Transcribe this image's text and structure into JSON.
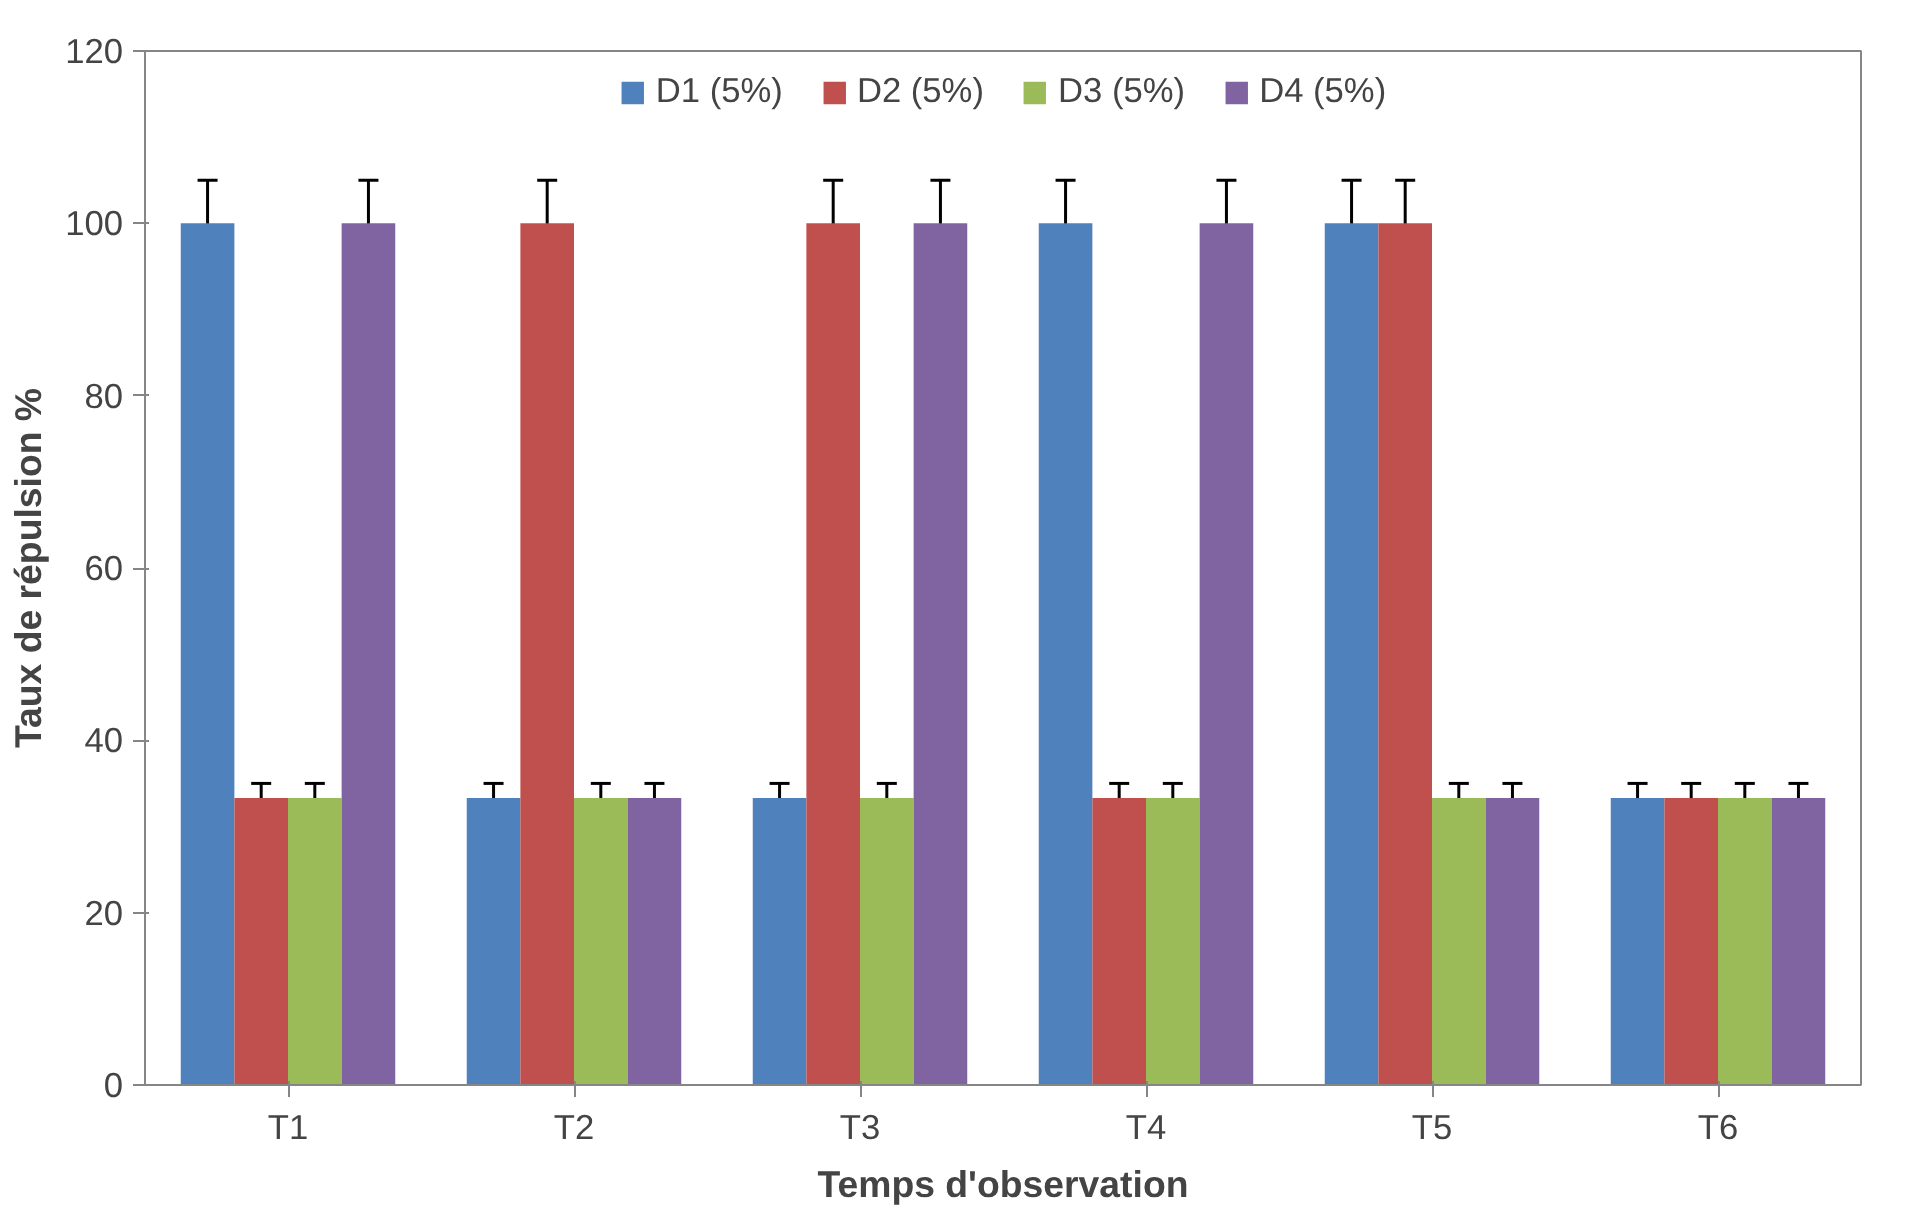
{
  "chart_data": {
    "type": "bar",
    "xlabel": "Temps d'observation",
    "ylabel": "Taux de répulsion %",
    "categories": [
      "T1",
      "T2",
      "T3",
      "T4",
      "T5",
      "T6"
    ],
    "series": [
      {
        "name": "D1 (5%)",
        "color": "#4f81bd",
        "values": [
          100,
          33.3,
          33.3,
          100,
          100,
          33.3
        ],
        "errors": [
          5,
          1.7,
          1.7,
          5,
          5,
          1.7
        ]
      },
      {
        "name": "D2 (5%)",
        "color": "#c0504d",
        "values": [
          33.3,
          100,
          100,
          33.3,
          100,
          33.3
        ],
        "errors": [
          1.7,
          5,
          5,
          1.7,
          5,
          1.7
        ]
      },
      {
        "name": "D3 (5%)",
        "color": "#9bbb59",
        "values": [
          33.3,
          33.3,
          33.3,
          33.3,
          33.3,
          33.3
        ],
        "errors": [
          1.7,
          1.7,
          1.7,
          1.7,
          1.7,
          1.7
        ]
      },
      {
        "name": "D4 (5%)",
        "color": "#8064a2",
        "values": [
          100,
          33.3,
          100,
          100,
          33.3,
          33.3
        ],
        "errors": [
          5,
          1.7,
          5,
          5,
          1.7,
          1.7
        ]
      }
    ],
    "ylim": [
      0,
      120
    ],
    "yticks": [
      0,
      20,
      40,
      60,
      80,
      100,
      120
    ],
    "grid": false,
    "legend": "top"
  }
}
